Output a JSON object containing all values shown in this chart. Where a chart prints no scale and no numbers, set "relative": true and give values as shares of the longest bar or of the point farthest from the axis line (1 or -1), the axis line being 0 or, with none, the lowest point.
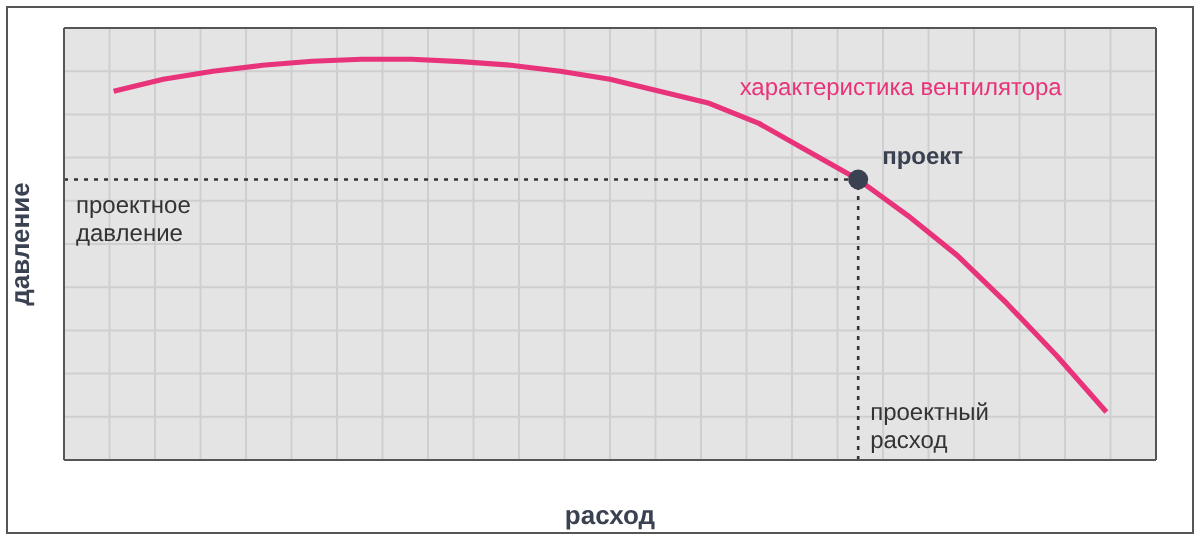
{
  "chart_data": {
    "type": "line",
    "relative": true,
    "xlabel": "расход",
    "ylabel": "давление",
    "categories": [
      null,
      null,
      null,
      null,
      null,
      null,
      null,
      null,
      null,
      null,
      null,
      null,
      null,
      null,
      null,
      null,
      null,
      null,
      null,
      null,
      null,
      null,
      null
    ],
    "series": [
      {
        "name": "характеристика вентилятора",
        "color": "#e8337a",
        "values": [
          null,
          0.92,
          0.95,
          0.97,
          0.985,
          0.995,
          1,
          1,
          0.994,
          0.985,
          0.97,
          0.95,
          0.92,
          0.89,
          0.84,
          0.77,
          0.7,
          0.61,
          0.51,
          0.39,
          0.26,
          0.12,
          null
        ]
      }
    ],
    "annotations": [
      "проект"
    ],
    "ref_lines": [
      {
        "axis": "y",
        "value": 0.7,
        "label": "проектное давление",
        "line_style": "dotted",
        "color": "#333333"
      },
      {
        "axis": "x",
        "label": "проектный расход",
        "line_style": "dotted",
        "color": "#333333"
      }
    ],
    "grid": true,
    "line_style": "solid",
    "marker": "none"
  }
}
